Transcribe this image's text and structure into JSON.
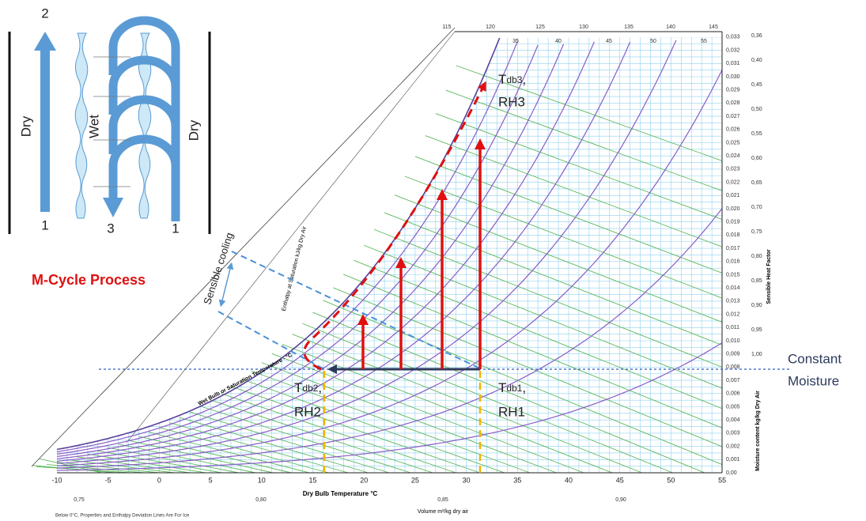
{
  "schematic": {
    "channel_labels": [
      "Dry",
      "Wet",
      "Dry"
    ],
    "port_labels": [
      "2",
      "1",
      "3",
      "1"
    ]
  },
  "process_title": "M-Cycle Process",
  "sensible_cooling": "Sensible cooling",
  "states": [
    {
      "main": "T",
      "sub": "db3",
      "suffix": ",",
      "line2": "RH3"
    },
    {
      "main": "T",
      "sub": "db2",
      "suffix": ",",
      "line2": "RH2"
    },
    {
      "main": "T",
      "sub": "db1",
      "suffix": ",",
      "line2": "RH1"
    }
  ],
  "constant_moisture": [
    "Constant",
    "Moisture"
  ],
  "chart": {
    "x_axis": {
      "title": "Dry Bulb Temperature   °C",
      "ticks": [
        "-10",
        "-5",
        "0",
        "5",
        "10",
        "15",
        "20",
        "25",
        "30",
        "35",
        "40",
        "45",
        "50",
        "55"
      ]
    },
    "volume_axis": {
      "title": "Volume m³/kg dry air",
      "ticks": [
        "0,75",
        "0,80",
        "0,85",
        "0,90"
      ]
    },
    "moisture_axis": {
      "title": "Moisture content  kg/kg Dry Air",
      "ticks": [
        "0,033",
        "0,032",
        "0,031",
        "0,030",
        "0,029",
        "0,028",
        "0,027",
        "0,026",
        "0,025",
        "0,024",
        "0,023",
        "0,022",
        "0,021",
        "0,020",
        "0,019",
        "0,018",
        "0,017",
        "0,016",
        "0,015",
        "0,014",
        "0,013",
        "0,012",
        "0,011",
        "0,010",
        "0,009",
        "0,008",
        "0,007",
        "0,006",
        "0,005",
        "0,004",
        "0,003",
        "0,002",
        "0,001",
        "0,00"
      ]
    },
    "shf_axis": {
      "title": "Sensible Heat Factor",
      "ticks": [
        "0,36",
        "0,40",
        "0,45",
        "0,50",
        "0,55",
        "0,60",
        "0,65",
        "0,70",
        "0,75",
        "0,80",
        "0,85",
        "0,90",
        "0,95",
        "1,00"
      ]
    },
    "enthalpy_top_ticks": [
      "115",
      "120",
      "125",
      "130",
      "135",
      "140",
      "145"
    ],
    "wet_bulb_top_ticks": [
      "35",
      "40",
      "45",
      "50",
      "55"
    ],
    "wet_bulb_title": "Wet Bulb or Saturation Temperature - °C",
    "enthalpy_title": "Enthalpy at Saturation   kJ/kg Dry Air",
    "footnote": "Below 0°C, Properties and Enthalpy Deviation Lines Are For Ice"
  }
}
